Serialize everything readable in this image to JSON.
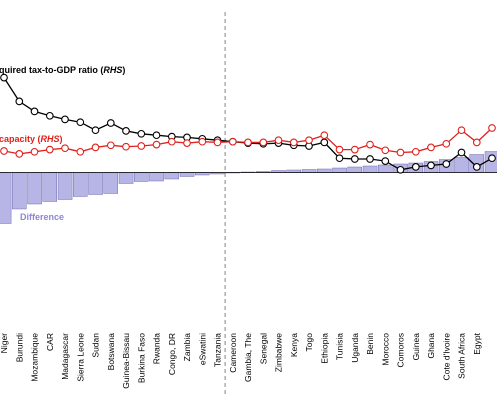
{
  "chart_data": {
    "type": "bar",
    "categories": [
      "Niger",
      "Burundi",
      "Mozambique",
      "CAR",
      "Madagascar",
      "Sierra Leone",
      "Sudan",
      "Botswana",
      "Guinea-Bissau",
      "Burkina Faso",
      "Rwanda",
      "Congo, DR",
      "Zambia",
      "eSwatini",
      "Tanzania",
      "Cameroon",
      "Gambia, The",
      "Senegal",
      "Zimbabwe",
      "Kenya",
      "Togo",
      "Ethiopia",
      "Tunisia",
      "Uganda",
      "Benin",
      "Morocco",
      "Comoros",
      "Guinea",
      "Ghana",
      "Cote d'Ivoire",
      "South Africa",
      "Egypt",
      ""
    ],
    "tick_labels": [
      "Niger",
      "Burundi",
      "Mozambique",
      "CAR",
      "Madagascar",
      "Sierra Leone",
      "Sudan",
      "Botswana",
      "Guinea-Bissau",
      "Burkina Faso",
      "Rwanda",
      "Congo, DR",
      "Zambia",
      "eSwatini",
      "Tanzania",
      "Cameroon",
      "Gambia, The",
      "Senegal",
      "Zimbabwe",
      "Kenya",
      "Togo",
      "Ethiopia",
      "Tunisia",
      "Uganda",
      "Benin",
      "Morocco",
      "Comoros",
      "Guinea",
      "Ghana",
      "Cote d'Ivoire",
      "South Africa",
      "Egypt"
    ],
    "series": [
      {
        "name": "Difference",
        "type": "bar",
        "color": "#b7b4e6",
        "values": [
          -10.2,
          -7.3,
          -6.3,
          -5.8,
          -5.4,
          -4.8,
          -4.4,
          -4.2,
          -2.2,
          -1.8,
          -1.7,
          -1.3,
          -0.8,
          -0.5,
          -0.3,
          -0.1,
          0.1,
          0.2,
          0.4,
          0.5,
          0.6,
          0.7,
          0.9,
          1.1,
          1.3,
          1.5,
          1.7,
          1.9,
          2.2,
          2.6,
          3.0,
          3.6,
          4.2
        ]
      },
      {
        "name": "Required tax-to-GDP ratio",
        "type": "line",
        "color": "#000000",
        "values": [
          36.5,
          33.2,
          31.8,
          31.2,
          30.7,
          30.3,
          29.2,
          30.2,
          29.1,
          28.7,
          28.5,
          28.3,
          28.2,
          28.0,
          27.8,
          27.6,
          27.4,
          27.3,
          27.4,
          27.1,
          27.0,
          27.5,
          25.3,
          25.2,
          25.2,
          24.9,
          23.7,
          24.1,
          24.3,
          24.5,
          26.1,
          24.1,
          25.3
        ]
      },
      {
        "name": "capacity",
        "type": "line",
        "color": "#e0201b",
        "values": [
          26.3,
          25.9,
          26.2,
          26.5,
          26.7,
          26.2,
          26.8,
          27.1,
          26.9,
          27.0,
          27.2,
          27.6,
          27.4,
          27.6,
          27.5,
          27.6,
          27.5,
          27.5,
          27.8,
          27.5,
          27.8,
          28.5,
          26.5,
          26.5,
          27.2,
          26.4,
          26.1,
          26.2,
          26.8,
          27.3,
          29.2,
          27.5,
          29.5
        ]
      }
    ],
    "labels": {
      "required": "quired tax-to-GDP ratio (",
      "required_rhs": "RHS",
      "required_close": ")",
      "capacity": "capacity (",
      "capacity_rhs": "RHS",
      "capacity_close": ")",
      "difference": "Difference"
    },
    "divider_after_category": "Tanzania",
    "grid": false,
    "legend": "inline labels"
  }
}
